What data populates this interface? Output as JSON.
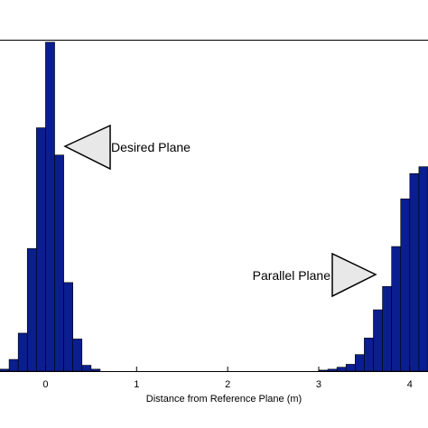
{
  "chart_data": {
    "type": "bar",
    "xlabel": "Distance from Reference Plane (m)",
    "ylabel": "",
    "title": "",
    "xlim": [
      -0.5,
      4.2
    ],
    "ylim": [
      0,
      340
    ],
    "xticks": [
      "0",
      "1",
      "2",
      "3",
      "4"
    ],
    "grid": false,
    "bar_color": "#0b1e8f",
    "bin_width": 0.1,
    "bins": [
      {
        "x": -0.45,
        "value": 2
      },
      {
        "x": -0.35,
        "value": 12
      },
      {
        "x": -0.25,
        "value": 39
      },
      {
        "x": -0.15,
        "value": 126
      },
      {
        "x": -0.05,
        "value": 250
      },
      {
        "x": 0.05,
        "value": 338
      },
      {
        "x": 0.15,
        "value": 222
      },
      {
        "x": 0.25,
        "value": 91
      },
      {
        "x": 0.35,
        "value": 33
      },
      {
        "x": 0.45,
        "value": 6
      },
      {
        "x": 0.55,
        "value": 2
      },
      {
        "x": 3.05,
        "value": 1
      },
      {
        "x": 3.15,
        "value": 2
      },
      {
        "x": 3.25,
        "value": 4
      },
      {
        "x": 3.35,
        "value": 7
      },
      {
        "x": 3.45,
        "value": 17
      },
      {
        "x": 3.55,
        "value": 34
      },
      {
        "x": 3.65,
        "value": 63
      },
      {
        "x": 3.75,
        "value": 87
      },
      {
        "x": 3.85,
        "value": 128
      },
      {
        "x": 3.95,
        "value": 177
      },
      {
        "x": 4.05,
        "value": 203
      },
      {
        "x": 4.15,
        "value": 210
      }
    ],
    "annotations": [
      {
        "text": "Desired Plane"
      },
      {
        "text": "Parallel Plane"
      }
    ]
  }
}
